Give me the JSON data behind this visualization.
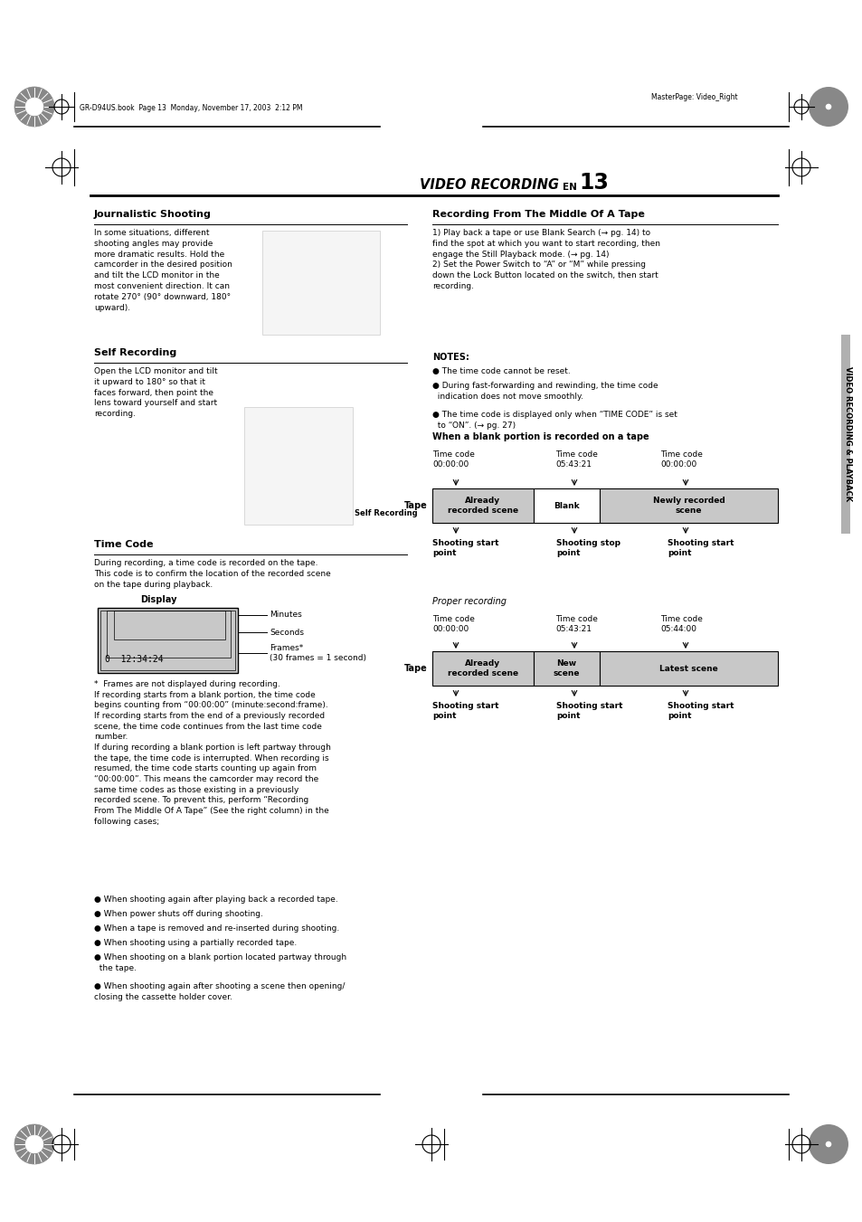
{
  "page_bg": "#ffffff",
  "page_width": 9.54,
  "page_height": 13.51,
  "top_text_left": "GR-D94US.book  Page 13  Monday, November 17, 2003  2:12 PM",
  "top_text_right": "MasterPage: Video_Right",
  "header_title": "VIDEO RECORDING",
  "header_en": "EN",
  "header_num": "13",
  "section1_title": "Journalistic Shooting",
  "section1_body": "In some situations, different\nshooting angles may provide\nmore dramatic results. Hold the\ncamcorder in the desired position\nand tilt the LCD monitor in the\nmost convenient direction. It can\nrotate 270° (90° downward, 180°\nupward).",
  "section2_title": "Self Recording",
  "section2_body": "Open the LCD monitor and tilt\nit upward to 180° so that it\nfaces forward, then point the\nlens toward yourself and start\nrecording.",
  "section2_caption": "Self Recording",
  "section3_title": "Time Code",
  "section3_body1": "During recording, a time code is recorded on the tape.\nThis code is to confirm the location of the recorded scene\non the tape during playback.",
  "display_label": "Display",
  "footnote": "*  Frames are not displayed during recording.\nIf recording starts from a blank portion, the time code\nbegins counting from “00:00:00” (minute:second:frame).\nIf recording starts from the end of a previously recorded\nscene, the time code continues from the last time code\nnumber.\nIf during recording a blank portion is left partway through\nthe tape, the time code is interrupted. When recording is\nresumed, the time code starts counting up again from\n“00:00:00”. This means the camcorder may record the\nsame time codes as those existing in a previously\nrecorded scene. To prevent this, perform “Recording\nFrom The Middle Of A Tape” (See the right column) in the\nfollowing cases;",
  "bullets": [
    "When shooting again after playing back a recorded tape.",
    "When power shuts off during shooting.",
    "When a tape is removed and re-inserted during shooting.",
    "When shooting using a partially recorded tape.",
    "When shooting on a blank portion located partway through\n  the tape.",
    "When shooting again after shooting a scene then opening/\nclosing the cassette holder cover."
  ],
  "right_title": "Recording From The Middle Of A Tape",
  "right_body": "1) Play back a tape or use Blank Search (→ pg. 14) to\nfind the spot at which you want to start recording, then\nengage the Still Playback mode. (→ pg. 14)\n2) Set the Power Switch to “A” or “M” while pressing\ndown the Lock Button located on the switch, then start\nrecording.",
  "notes_title": "NOTES:",
  "notes_bullets": [
    "The time code cannot be reset.",
    "During fast-forwarding and rewinding, the time code\n  indication does not move smoothly.",
    "The time code is displayed only when “TIME CODE” is set\n  to “ON”. (→ pg. 27)"
  ],
  "blank_title": "When a blank portion is recorded on a tape",
  "blank_tc1": "Time code\n00:00:00",
  "blank_tc2": "Time code\n05:43:21",
  "blank_tc3": "Time code\n00:00:00",
  "blank_tape_label": "Tape",
  "blank_cells": [
    "Already\nrecorded scene",
    "Blank",
    "Newly recorded\nscene"
  ],
  "blank_cell_colors": [
    "#c8c8c8",
    "#ffffff",
    "#c8c8c8"
  ],
  "blank_arrow_labels": [
    "Shooting start\npoint",
    "Shooting stop\npoint",
    "Shooting start\npoint"
  ],
  "proper_title": "Proper recording",
  "proper_tc1": "Time code\n00:00:00",
  "proper_tc2": "Time code\n05:43:21",
  "proper_tc3": "Time code\n05:44:00",
  "proper_tape_label": "Tape",
  "proper_cells": [
    "Already\nrecorded scene",
    "New\nscene",
    "Latest scene"
  ],
  "proper_cell_colors": [
    "#c8c8c8",
    "#c8c8c8",
    "#c8c8c8"
  ],
  "proper_arrow_labels": [
    "Shooting start\npoint",
    "Shooting start\npoint",
    "Shooting start\npoint"
  ],
  "sidebar_text": "VIDEO RECORDING & PLAYBACK"
}
